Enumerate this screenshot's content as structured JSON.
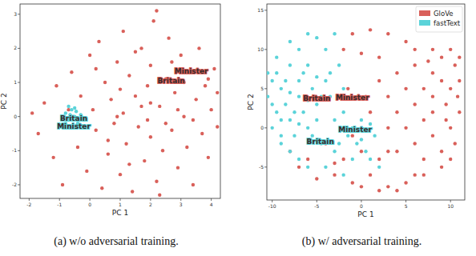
{
  "chart_data": [
    {
      "type": "scatter",
      "title": "(a) w/o adversarial training.",
      "x_label": "PC 1",
      "y_label": "PC 2",
      "xlim": [
        -2.3,
        4.3
      ],
      "ylim": [
        -2.4,
        3.3
      ],
      "xticks": [
        -2,
        -1,
        0,
        1,
        2,
        3,
        4
      ],
      "yticks": [
        -2,
        -1,
        0,
        1,
        2,
        3
      ],
      "series": [
        {
          "color": "#d9605a",
          "marker": "circle",
          "x": [
            -1.9,
            -1.7,
            -1.5,
            -1.2,
            -1.1,
            -0.9,
            -0.6,
            -0.4,
            -0.3,
            -0.1,
            0.0,
            0.1,
            0.2,
            0.3,
            0.4,
            0.5,
            0.6,
            0.7,
            0.8,
            0.9,
            1.0,
            1.1,
            1.1,
            1.2,
            1.3,
            1.4,
            1.5,
            1.6,
            1.7,
            1.8,
            1.9,
            2.0,
            2.0,
            2.1,
            2.2,
            2.3,
            2.4,
            2.5,
            2.6,
            2.7,
            2.8,
            2.9,
            3.0,
            3.1,
            3.2,
            3.3,
            3.4,
            3.5,
            3.6,
            3.7,
            3.8,
            3.9,
            4.0,
            4.1,
            4.2,
            1.5,
            2.3,
            0.2,
            -0.7,
            1.0,
            2.9,
            3.4,
            2.0,
            0.6,
            1.9,
            2.7,
            3.9,
            1.3,
            0.9,
            2.5,
            3.1,
            1.7,
            -0.2,
            4.2,
            2.2
          ],
          "values": [
            0.1,
            -0.5,
            0.4,
            -1.2,
            0.9,
            -2.0,
            1.3,
            -0.9,
            0.6,
            -1.6,
            1.8,
            0.2,
            -0.4,
            2.2,
            -2.1,
            1.0,
            -1.1,
            0.5,
            -0.2,
            1.6,
            -1.7,
            2.5,
            0.1,
            -0.8,
            1.2,
            -2.2,
            0.6,
            -0.3,
            2.0,
            -1.3,
            0.9,
            -0.6,
            1.5,
            2.8,
            -1.9,
            0.3,
            -1.0,
            1.1,
            2.3,
            -0.4,
            0.7,
            -1.5,
            1.8,
            0.0,
            -0.9,
            1.3,
            -2.0,
            0.5,
            2.0,
            -0.5,
            0.9,
            -1.2,
            0.2,
            1.4,
            -0.3,
            1.9,
            -2.3,
            1.4,
            0.2,
            0.8,
            0.2,
            -0.1,
            0.4,
            -0.7,
            -0.1,
            1.6,
            1.1,
            -1.4,
            0.0,
            -0.2,
            1.0,
            0.3,
            -0.1,
            0.7,
            3.1
          ],
          "annotations": [
            {
              "text": "Britain",
              "x": 2.68,
              "y": 1.05
            },
            {
              "text": "Minister",
              "x": 3.34,
              "y": 1.33
            }
          ]
        },
        {
          "color": "#5bd3d9",
          "marker": "circle",
          "x": [
            -0.8,
            -0.7,
            -0.6,
            -0.5,
            -0.4,
            -0.6,
            -0.7,
            -0.5,
            -0.3,
            -0.8,
            -0.55,
            -0.65,
            -0.45,
            -0.35
          ],
          "values": [
            0.1,
            -0.1,
            0.2,
            0.0,
            -0.2,
            -0.3,
            0.3,
            0.25,
            0.05,
            -0.2,
            -0.1,
            0.05,
            0.15,
            -0.1
          ],
          "annotations": [
            {
              "text": "Britain",
              "x": -0.53,
              "y": -0.05
            },
            {
              "text": "Minister",
              "x": -0.53,
              "y": -0.28
            }
          ]
        }
      ]
    },
    {
      "type": "scatter",
      "title": "(b) w/ adversarial training.",
      "x_label": "PC 1",
      "y_label": "PC 2",
      "xlim": [
        -10.6,
        11.6
      ],
      "ylim": [
        -9.2,
        15.8
      ],
      "xticks": [
        -10,
        -5,
        0,
        5,
        10
      ],
      "yticks": [
        -5,
        0,
        5,
        10,
        15
      ],
      "legend": "upper right",
      "series": [
        {
          "name": "GloVe",
          "color": "#d9605a",
          "marker": "circle",
          "x": [
            10,
            10.5,
            9,
            11,
            10,
            9.5,
            11,
            10,
            10.5,
            9,
            8,
            8,
            7,
            8,
            7,
            6,
            5,
            4,
            3,
            2,
            0,
            -1,
            -3,
            -5,
            -7,
            -8,
            6,
            5,
            3,
            1,
            -1,
            7,
            6,
            5,
            4,
            2,
            0,
            -2,
            -4,
            6,
            8,
            9,
            11,
            10,
            3,
            4,
            2,
            0,
            -2,
            1,
            3,
            -1,
            5,
            7,
            9,
            -6,
            2,
            6,
            8,
            4,
            -3,
            1,
            3,
            10.8,
            9.5,
            7.5,
            -1.5,
            0.5
          ],
          "values": [
            10,
            8,
            9,
            6,
            5,
            3,
            2,
            0,
            -2,
            -3,
            7,
            4,
            1,
            -1,
            -4,
            -6,
            -7,
            -8,
            -7.5,
            -8,
            -7.5,
            -7,
            -6,
            -6.5,
            -5,
            -3,
            10,
            11,
            12,
            12.5,
            12,
            5,
            3,
            0,
            -3,
            -4,
            -3,
            -4,
            -2,
            -2,
            2,
            6,
            9,
            -4,
            4,
            7,
            9,
            9.5,
            10,
            2,
            0,
            -1,
            5,
            -6,
            -5,
            -4,
            6,
            8,
            10,
            2,
            -4.5,
            -6,
            -3,
            4,
            1,
            8.5,
            5,
            4
          ],
          "annotations": [
            {
              "text": "Britain",
              "x": -5.0,
              "y": 3.8
            },
            {
              "text": "Minister",
              "x": -1.0,
              "y": 3.9
            }
          ]
        },
        {
          "name": "fastText",
          "color": "#5bd3d9",
          "marker": "circle",
          "x": [
            -10,
            -10.5,
            -9.5,
            -10,
            -9,
            -8,
            -9,
            -8.5,
            -8,
            -7.5,
            -7,
            -7,
            -7,
            -6.5,
            -6,
            -6,
            -5.5,
            -5,
            -5,
            -4.5,
            -4,
            -4,
            -3.5,
            -3,
            -3,
            -2.5,
            -2,
            -2,
            -1.5,
            -1,
            -0.5,
            0,
            0.5,
            1,
            1.5,
            2,
            -9.5,
            -10.5,
            -8,
            -6,
            -5,
            -3,
            -9,
            -8,
            -7,
            -6,
            -4,
            -2,
            -10,
            -9.5,
            -8.5,
            -7.5,
            -6.5,
            -5.5,
            -4.5,
            -3.5,
            -2.5,
            0,
            1,
            -1,
            -8,
            -9,
            -7,
            -6,
            -5
          ],
          "values": [
            6,
            4,
            2,
            0,
            -2,
            8,
            5,
            3,
            1,
            -1,
            10,
            6,
            4,
            2,
            0,
            8,
            5,
            3,
            1,
            -2,
            10,
            6,
            4,
            1,
            -3,
            8,
            5,
            2,
            -1,
            0,
            -2,
            1,
            -3,
            -4,
            -1,
            -5,
            9,
            7,
            11,
            12,
            11.5,
            12,
            -1,
            -3,
            -4,
            -5,
            -5,
            -6,
            3,
            7,
            6,
            2,
            7,
            -1,
            4,
            7,
            -2,
            -1.5,
            0.5,
            -4,
            4.5,
            1,
            0.5,
            3.5,
            6.5
          ],
          "annotations": [
            {
              "text": "Minister",
              "x": -0.7,
              "y": -0.2
            },
            {
              "text": "Britain",
              "x": -4.6,
              "y": -1.8
            }
          ]
        }
      ]
    }
  ]
}
